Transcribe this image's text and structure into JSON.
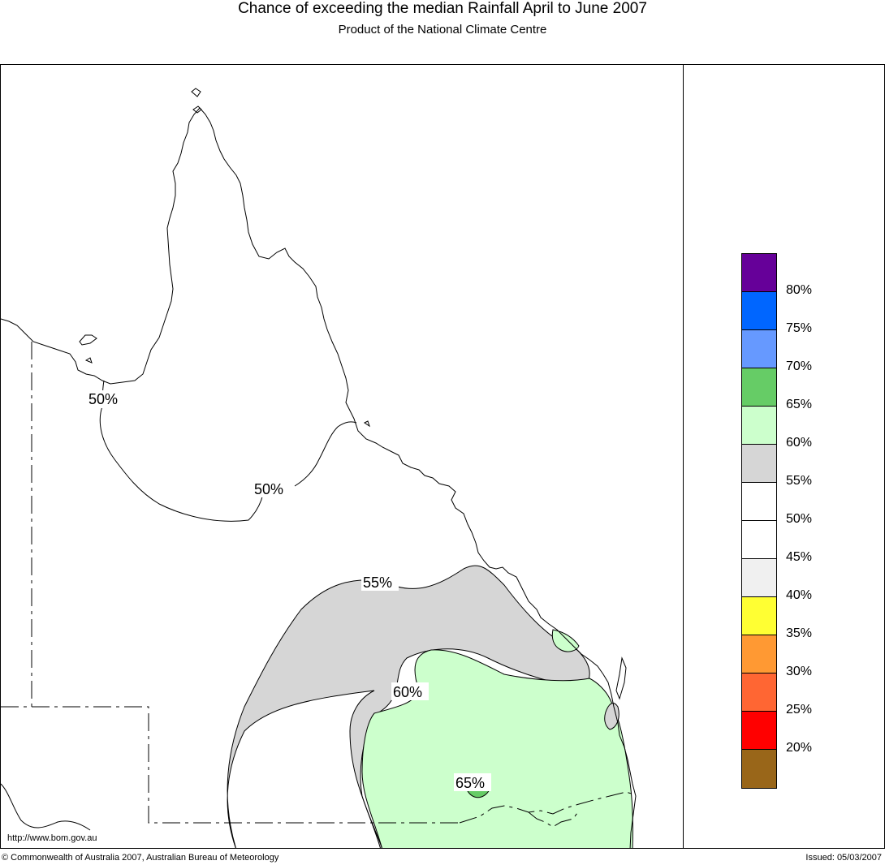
{
  "header": {
    "title": "Chance of exceeding the median Rainfall April to June 2007",
    "subtitle": "Product of the National Climate Centre"
  },
  "map": {
    "url": "http://www.bom.gov.au",
    "contour_labels": [
      "50%",
      "50%",
      "55%",
      "60%",
      "65%"
    ],
    "colors": {
      "land_default": "#ffffff",
      "zone_55_60": "#d6d6d6",
      "zone_60_65": "#ccffcc",
      "zone_65_70": "#66cc66",
      "coastline": "#000000"
    }
  },
  "legend": {
    "labels": [
      "80%",
      "75%",
      "70%",
      "65%",
      "60%",
      "55%",
      "50%",
      "45%",
      "40%",
      "35%",
      "30%",
      "25%",
      "20%"
    ],
    "colors": [
      "#660099",
      "#0066ff",
      "#6699ff",
      "#66cc66",
      "#ccffcc",
      "#d6d6d6",
      "#ffffff",
      "#ffffff",
      "#f0f0f0",
      "#ffff33",
      "#ff9933",
      "#ff6633",
      "#ff0000",
      "#996619"
    ]
  },
  "footer": {
    "copyright": "© Commonwealth of Australia 2007, Australian Bureau of Meteorology",
    "issued": "Issued: 05/03/2007"
  }
}
